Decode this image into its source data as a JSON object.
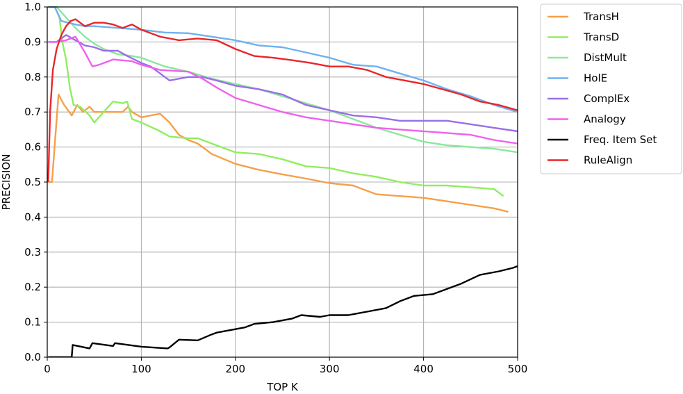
{
  "chart_data": {
    "type": "line",
    "xlabel": "TOP K",
    "ylabel": "PRECISION",
    "xlim": [
      0,
      500
    ],
    "ylim": [
      0.0,
      1.0
    ],
    "x_ticks": [
      0,
      100,
      200,
      300,
      400,
      500
    ],
    "y_ticks": [
      0.0,
      0.1,
      0.2,
      0.3,
      0.4,
      0.5,
      0.6,
      0.7,
      0.8,
      0.9,
      1.0
    ],
    "x_tick_labels": [
      "0",
      "100",
      "200",
      "300",
      "400",
      "500"
    ],
    "y_tick_labels": [
      "0.0",
      "0.1",
      "0.2",
      "0.3",
      "0.4",
      "0.5",
      "0.6",
      "0.7",
      "0.8",
      "0.9",
      "1.0"
    ],
    "grid": true,
    "legend_position": "outside-right",
    "series": [
      {
        "name": "TransH",
        "color": "#f5a04a",
        "x": [
          1,
          5,
          12,
          18,
          26,
          32,
          38,
          45,
          50,
          60,
          70,
          80,
          86,
          90,
          100,
          110,
          120,
          130,
          140,
          150,
          160,
          175,
          200,
          225,
          250,
          275,
          300,
          325,
          350,
          375,
          400,
          425,
          450,
          475,
          490
        ],
        "y": [
          0.5,
          0.5,
          0.75,
          0.72,
          0.69,
          0.72,
          0.7,
          0.715,
          0.7,
          0.7,
          0.7,
          0.7,
          0.715,
          0.7,
          0.685,
          0.69,
          0.695,
          0.67,
          0.635,
          0.62,
          0.61,
          0.58,
          0.552,
          0.535,
          0.522,
          0.51,
          0.497,
          0.49,
          0.465,
          0.46,
          0.455,
          0.445,
          0.435,
          0.425,
          0.415
        ]
      },
      {
        "name": "TransD",
        "color": "#90ee60",
        "x": [
          1,
          8,
          13,
          16,
          20,
          24,
          28,
          35,
          45,
          50,
          60,
          70,
          80,
          85,
          90,
          100,
          120,
          130,
          150,
          160,
          175,
          200,
          225,
          250,
          275,
          300,
          325,
          350,
          375,
          400,
          425,
          450,
          475,
          485
        ],
        "y": [
          1.0,
          1.0,
          0.97,
          0.9,
          0.85,
          0.77,
          0.72,
          0.715,
          0.69,
          0.67,
          0.7,
          0.73,
          0.725,
          0.73,
          0.68,
          0.67,
          0.645,
          0.63,
          0.625,
          0.625,
          0.61,
          0.585,
          0.58,
          0.565,
          0.545,
          0.54,
          0.525,
          0.515,
          0.5,
          0.49,
          0.49,
          0.485,
          0.48,
          0.46
        ]
      },
      {
        "name": "DistMult",
        "color": "#8ae89a",
        "x": [
          1,
          10,
          20,
          30,
          40,
          50,
          60,
          75,
          90,
          100,
          125,
          150,
          175,
          200,
          225,
          250,
          275,
          300,
          325,
          350,
          375,
          400,
          425,
          450,
          475,
          500
        ],
        "y": [
          1.0,
          1.0,
          0.97,
          0.94,
          0.915,
          0.895,
          0.88,
          0.865,
          0.86,
          0.855,
          0.83,
          0.815,
          0.795,
          0.78,
          0.765,
          0.745,
          0.725,
          0.705,
          0.68,
          0.655,
          0.635,
          0.615,
          0.605,
          0.6,
          0.595,
          0.585
        ]
      },
      {
        "name": "HolE",
        "color": "#6fb1ef",
        "x": [
          1,
          8,
          15,
          22,
          30,
          40,
          50,
          75,
          100,
          125,
          150,
          175,
          200,
          225,
          250,
          275,
          300,
          325,
          350,
          375,
          400,
          425,
          450,
          475,
          500
        ],
        "y": [
          1.0,
          1.0,
          0.96,
          0.955,
          0.95,
          0.945,
          0.945,
          0.94,
          0.935,
          0.927,
          0.925,
          0.915,
          0.905,
          0.89,
          0.885,
          0.87,
          0.855,
          0.835,
          0.83,
          0.81,
          0.79,
          0.765,
          0.745,
          0.72,
          0.7
        ]
      },
      {
        "name": "ComplEx",
        "color": "#9a6ee8",
        "x": [
          1,
          10,
          20,
          30,
          40,
          50,
          60,
          75,
          85,
          100,
          110,
          130,
          150,
          165,
          180,
          200,
          225,
          250,
          275,
          300,
          325,
          350,
          375,
          400,
          425,
          450,
          475,
          500
        ],
        "y": [
          0.9,
          0.9,
          0.92,
          0.905,
          0.89,
          0.885,
          0.875,
          0.875,
          0.86,
          0.84,
          0.83,
          0.79,
          0.8,
          0.8,
          0.79,
          0.775,
          0.765,
          0.75,
          0.72,
          0.705,
          0.69,
          0.685,
          0.675,
          0.675,
          0.675,
          0.665,
          0.655,
          0.645
        ]
      },
      {
        "name": "Analogy",
        "color": "#f060ee",
        "x": [
          1,
          10,
          20,
          30,
          40,
          48,
          55,
          70,
          90,
          100,
          120,
          150,
          165,
          180,
          200,
          225,
          250,
          275,
          300,
          325,
          350,
          375,
          400,
          425,
          450,
          475,
          500
        ],
        "y": [
          0.9,
          0.9,
          0.905,
          0.915,
          0.87,
          0.83,
          0.835,
          0.85,
          0.845,
          0.835,
          0.82,
          0.815,
          0.795,
          0.77,
          0.74,
          0.72,
          0.7,
          0.685,
          0.675,
          0.665,
          0.655,
          0.65,
          0.645,
          0.64,
          0.635,
          0.62,
          0.61
        ]
      },
      {
        "name": "Freq. Item Set",
        "color": "#000000",
        "x": [
          1,
          26,
          27,
          45,
          48,
          70,
          72,
          100,
          128,
          130,
          140,
          160,
          175,
          180,
          200,
          210,
          220,
          240,
          260,
          270,
          290,
          300,
          320,
          340,
          360,
          375,
          390,
          410,
          425,
          440,
          460,
          470,
          480,
          495,
          500
        ],
        "y": [
          0.0,
          0.0,
          0.035,
          0.025,
          0.04,
          0.032,
          0.04,
          0.03,
          0.025,
          0.028,
          0.05,
          0.048,
          0.065,
          0.07,
          0.08,
          0.085,
          0.095,
          0.1,
          0.11,
          0.12,
          0.115,
          0.12,
          0.12,
          0.13,
          0.14,
          0.16,
          0.175,
          0.18,
          0.195,
          0.21,
          0.235,
          0.24,
          0.245,
          0.255,
          0.26
        ]
      },
      {
        "name": "RuleAlign",
        "color": "#e8262a",
        "x": [
          1,
          3,
          6,
          10,
          15,
          20,
          25,
          30,
          40,
          50,
          60,
          70,
          80,
          90,
          100,
          120,
          140,
          160,
          180,
          200,
          220,
          240,
          260,
          280,
          300,
          320,
          340,
          360,
          380,
          400,
          420,
          440,
          460,
          480,
          500
        ],
        "y": [
          0.5,
          0.7,
          0.82,
          0.88,
          0.92,
          0.945,
          0.96,
          0.965,
          0.945,
          0.955,
          0.955,
          0.95,
          0.94,
          0.95,
          0.935,
          0.915,
          0.905,
          0.91,
          0.905,
          0.88,
          0.86,
          0.855,
          0.848,
          0.84,
          0.83,
          0.83,
          0.82,
          0.8,
          0.79,
          0.78,
          0.765,
          0.75,
          0.73,
          0.72,
          0.705
        ]
      }
    ]
  }
}
